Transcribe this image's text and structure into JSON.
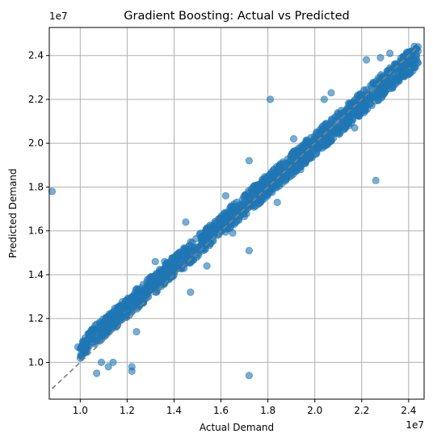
{
  "chart_data": {
    "type": "scatter",
    "title": "Gradient Boosting: Actual vs Predicted",
    "xlabel": "Actual Demand",
    "ylabel": "Predicted Demand",
    "x_offset_label": "1e7",
    "y_offset_label": "1e7",
    "xlim": [
      0.868,
      2.466
    ],
    "ylim": [
      0.832,
      2.528
    ],
    "xticks": [
      1.0,
      1.2,
      1.4,
      1.6,
      1.8,
      2.0,
      2.2,
      2.4
    ],
    "yticks": [
      1.0,
      1.2,
      1.4,
      1.6,
      1.8,
      2.0,
      2.2,
      2.4
    ],
    "xtick_labels": [
      "1.0",
      "1.2",
      "1.4",
      "1.6",
      "1.8",
      "2.0",
      "2.2",
      "2.4"
    ],
    "ytick_labels": [
      "1.0",
      "1.2",
      "1.4",
      "1.6",
      "1.8",
      "2.0",
      "2.2",
      "2.4"
    ],
    "grid": true,
    "point_color": "#1f77b4",
    "point_alpha": 0.6,
    "reference_line": {
      "x": [
        0.88,
        2.44
      ],
      "y": [
        0.88,
        2.44
      ],
      "color": "#808080",
      "style": "dashed"
    },
    "band": {
      "x_min": 1.0,
      "x_max": 2.44,
      "upper": [
        [
          1.0,
          1.11
        ],
        [
          2.44,
          2.46
        ]
      ],
      "lower": [
        [
          1.0,
          1.02
        ],
        [
          2.44,
          2.35
        ]
      ],
      "count": 1400
    },
    "points": [
      [
        0.88,
        1.78
      ],
      [
        1.72,
        0.94
      ],
      [
        1.81,
        2.2
      ],
      [
        2.26,
        1.83
      ],
      [
        1.72,
        1.51
      ],
      [
        1.47,
        1.32
      ],
      [
        1.07,
        0.95
      ],
      [
        1.12,
        0.98
      ],
      [
        1.22,
        0.96
      ],
      [
        1.22,
        0.98
      ],
      [
        1.14,
        1.0
      ],
      [
        1.09,
        1.0
      ],
      [
        1.0,
        1.02
      ],
      [
        0.99,
        1.07
      ],
      [
        1.01,
        1.09
      ],
      [
        1.32,
        1.46
      ],
      [
        1.36,
        1.46
      ],
      [
        1.45,
        1.64
      ],
      [
        1.62,
        1.76
      ],
      [
        1.72,
        1.92
      ],
      [
        1.91,
        2.02
      ],
      [
        2.04,
        2.2
      ],
      [
        2.07,
        2.23
      ],
      [
        2.22,
        2.38
      ],
      [
        2.28,
        2.39
      ],
      [
        2.32,
        2.41
      ],
      [
        2.41,
        2.42
      ],
      [
        2.43,
        2.43
      ],
      [
        2.44,
        2.42
      ],
      [
        2.44,
        2.44
      ],
      [
        2.42,
        2.35
      ],
      [
        2.17,
        2.07
      ],
      [
        1.94,
        1.88
      ],
      [
        1.84,
        1.73
      ],
      [
        1.65,
        1.59
      ],
      [
        1.54,
        1.44
      ],
      [
        1.24,
        1.14
      ]
    ]
  }
}
